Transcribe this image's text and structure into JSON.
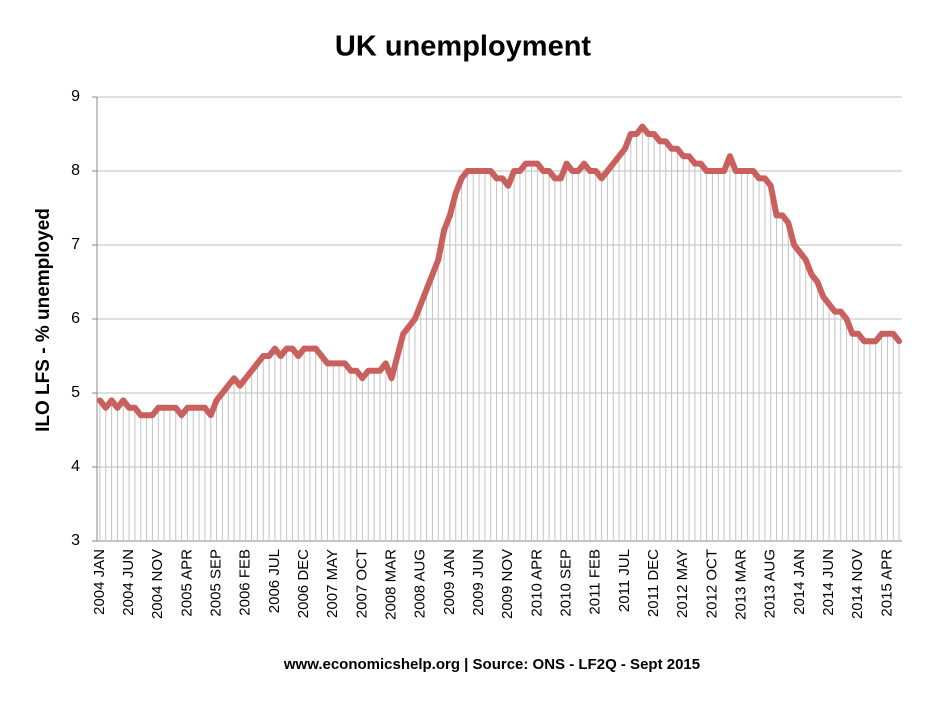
{
  "chart_data": {
    "type": "line",
    "title": "UK unemployment",
    "y_label": "ILO LFS - % unemployed",
    "footnote": "www.economicshelp.org | Source: ONS - LF2Q - Sept 2015",
    "categories": [
      "2004 JAN",
      null,
      null,
      null,
      null,
      "2004 JUN",
      null,
      null,
      null,
      null,
      "2004 NOV",
      null,
      null,
      null,
      null,
      "2005 APR",
      null,
      null,
      null,
      null,
      "2005 SEP",
      null,
      null,
      null,
      null,
      "2006 FEB",
      null,
      null,
      null,
      null,
      "2006 JUL",
      null,
      null,
      null,
      null,
      "2006 DEC",
      null,
      null,
      null,
      null,
      "2007 MAY",
      null,
      null,
      null,
      null,
      "2007 OCT",
      null,
      null,
      null,
      null,
      "2008 MAR",
      null,
      null,
      null,
      null,
      "2008 AUG",
      null,
      null,
      null,
      null,
      "2009 JAN",
      null,
      null,
      null,
      null,
      "2009 JUN",
      null,
      null,
      null,
      null,
      "2009 NOV",
      null,
      null,
      null,
      null,
      "2010 APR",
      null,
      null,
      null,
      null,
      "2010 SEP",
      null,
      null,
      null,
      null,
      "2011 FEB",
      null,
      null,
      null,
      null,
      "2011 JUL",
      null,
      null,
      null,
      null,
      "2011 DEC",
      null,
      null,
      null,
      null,
      "2012 MAY",
      null,
      null,
      null,
      null,
      "2012 OCT",
      null,
      null,
      null,
      null,
      "2013 MAR",
      null,
      null,
      null,
      null,
      "2013 AUG",
      null,
      null,
      null,
      null,
      "2014 JAN",
      null,
      null,
      null,
      null,
      "2014 JUN",
      null,
      null,
      null,
      null,
      "2014 NOV",
      null,
      null,
      null,
      null,
      "2015 APR",
      null,
      null
    ],
    "values": [
      4.9,
      4.8,
      4.9,
      4.8,
      4.9,
      4.8,
      4.8,
      4.7,
      4.7,
      4.7,
      4.8,
      4.8,
      4.8,
      4.8,
      4.7,
      4.8,
      4.8,
      4.8,
      4.8,
      4.7,
      4.9,
      5.0,
      5.1,
      5.2,
      5.1,
      5.2,
      5.3,
      5.4,
      5.5,
      5.5,
      5.6,
      5.5,
      5.6,
      5.6,
      5.5,
      5.6,
      5.6,
      5.6,
      5.5,
      5.4,
      5.4,
      5.4,
      5.4,
      5.3,
      5.3,
      5.2,
      5.3,
      5.3,
      5.3,
      5.4,
      5.2,
      5.5,
      5.8,
      5.9,
      6.0,
      6.2,
      6.4,
      6.6,
      6.8,
      7.2,
      7.4,
      7.7,
      7.9,
      8.0,
      8.0,
      8.0,
      8.0,
      8.0,
      7.9,
      7.9,
      7.8,
      8.0,
      8.0,
      8.1,
      8.1,
      8.1,
      8.0,
      8.0,
      7.9,
      7.9,
      8.1,
      8.0,
      8.0,
      8.1,
      8.0,
      8.0,
      7.9,
      8.0,
      8.1,
      8.2,
      8.3,
      8.5,
      8.5,
      8.6,
      8.5,
      8.5,
      8.4,
      8.4,
      8.3,
      8.3,
      8.2,
      8.2,
      8.1,
      8.1,
      8.0,
      8.0,
      8.0,
      8.0,
      8.2,
      8.0,
      8.0,
      8.0,
      8.0,
      7.9,
      7.9,
      7.8,
      7.4,
      7.4,
      7.3,
      7.0,
      6.9,
      6.8,
      6.6,
      6.5,
      6.3,
      6.2,
      6.1,
      6.1,
      6.0,
      5.8,
      5.8,
      5.7,
      5.7,
      5.7,
      5.8,
      5.8,
      5.8,
      5.7
    ],
    "color": "#c9605d",
    "dropline_color": "#c4c4c4",
    "ylim": [
      3,
      9
    ],
    "yticks": [
      3,
      4,
      5,
      6,
      7,
      8,
      9
    ],
    "grid": true
  }
}
